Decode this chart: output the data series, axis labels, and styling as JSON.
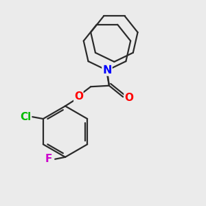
{
  "bg_color": "#ebebeb",
  "bond_color": "#2a2a2a",
  "bond_width": 1.6,
  "atom_colors": {
    "N": "#0000ff",
    "O": "#ff0000",
    "Cl": "#00bb00",
    "F": "#cc00cc"
  },
  "font_size": 10.5
}
